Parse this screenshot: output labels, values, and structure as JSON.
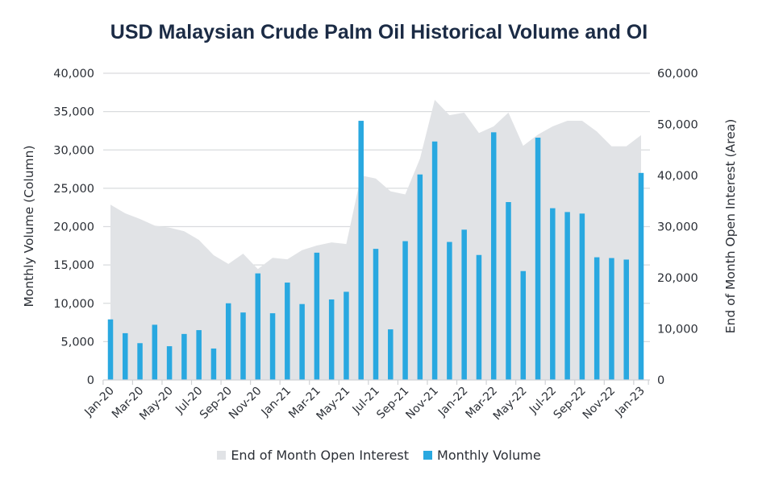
{
  "chart_data": {
    "type": "bar",
    "title": "USD Malaysian Crude Palm Oil Historical Volume and OI",
    "categories": [
      "Jan-20",
      "Feb-20",
      "Mar-20",
      "Apr-20",
      "May-20",
      "Jun-20",
      "Jul-20",
      "Aug-20",
      "Sep-20",
      "Oct-20",
      "Nov-20",
      "Dec-20",
      "Jan-21",
      "Feb-21",
      "Mar-21",
      "Apr-21",
      "May-21",
      "Jun-21",
      "Jul-21",
      "Aug-21",
      "Sep-21",
      "Oct-21",
      "Nov-21",
      "Dec-21",
      "Jan-22",
      "Feb-22",
      "Mar-22",
      "Apr-22",
      "May-22",
      "Jun-22",
      "Jul-22",
      "Aug-22",
      "Sep-22",
      "Oct-22",
      "Nov-22",
      "Dec-22",
      "Jan-23"
    ],
    "xtick_labels": [
      "Jan-20",
      "Mar-20",
      "May-20",
      "Jul-20",
      "Sep-20",
      "Nov-20",
      "Jan-21",
      "Mar-21",
      "May-21",
      "Jul-21",
      "Sep-21",
      "Nov-21",
      "Jan-22",
      "Mar-22",
      "May-22",
      "Jul-22",
      "Sep-22",
      "Nov-22",
      "Jan-23"
    ],
    "series": [
      {
        "name": "End of Month Open Interest",
        "type": "area",
        "axis": "right",
        "color": "#e1e3e6",
        "values": [
          34300,
          32600,
          31500,
          30200,
          29800,
          29100,
          27400,
          24400,
          22700,
          24700,
          21700,
          23900,
          23600,
          25400,
          26300,
          26900,
          26600,
          40000,
          39400,
          36900,
          36300,
          43300,
          54800,
          51800,
          52300,
          48300,
          49600,
          52300,
          45800,
          48000,
          49600,
          50700,
          50700,
          48600,
          45700,
          45700,
          47900
        ]
      },
      {
        "name": "Monthly Volume",
        "type": "bar",
        "axis": "left",
        "color": "#29a8e0",
        "values": [
          7900,
          6100,
          4800,
          7200,
          4400,
          6000,
          6500,
          4100,
          10000,
          8800,
          13900,
          8700,
          12700,
          9900,
          16600,
          10500,
          11500,
          33800,
          17100,
          6600,
          18100,
          26800,
          31100,
          18000,
          19600,
          16300,
          32300,
          23200,
          14200,
          31600,
          22400,
          21900,
          21700,
          16000,
          15900,
          15700,
          27000
        ]
      }
    ],
    "ylabel": "Monthly Volume (Column)",
    "ylabel_right": "End of Month Open Interest (Area)",
    "ylim": [
      0,
      40000
    ],
    "ylim_right": [
      0,
      60000
    ],
    "yticks": [
      "0",
      "5,000",
      "10,000",
      "15,000",
      "20,000",
      "25,000",
      "30,000",
      "35,000",
      "40,000"
    ],
    "yticks_right": [
      "0",
      "10,000",
      "20,000",
      "30,000",
      "40,000",
      "50,000",
      "60,000"
    ],
    "grid": true,
    "legend_position": "bottom-center"
  },
  "legend": {
    "oi_label": "End of Month Open Interest",
    "volume_label": "Monthly Volume"
  }
}
